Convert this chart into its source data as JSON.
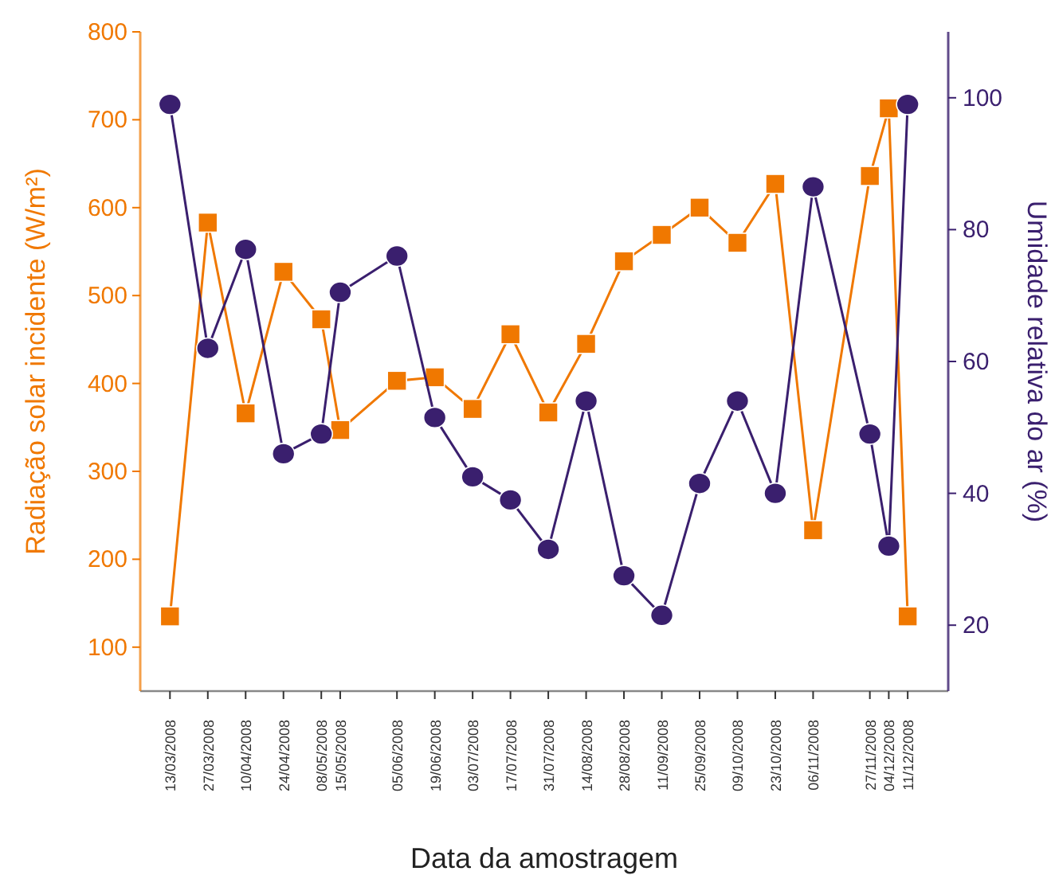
{
  "chart_data": {
    "type": "line",
    "xlabel": "Data da amostragem",
    "ylabel": "Radiação solar incidente (W/m²)",
    "y2label": "Umidade relativa do ar (%)",
    "x": [
      "2008-03-13",
      "2008-03-27",
      "2008-04-10",
      "2008-04-24",
      "2008-05-08",
      "2008-05-15",
      "2008-06-05",
      "2008-06-19",
      "2008-07-03",
      "2008-07-17",
      "2008-07-31",
      "2008-08-14",
      "2008-08-28",
      "2008-09-11",
      "2008-09-25",
      "2008-10-09",
      "2008-10-23",
      "2008-11-06",
      "2008-11-27",
      "2008-12-04",
      "2008-12-11"
    ],
    "series": [
      {
        "color": "#f07800",
        "marker": "square",
        "values": [
          135,
          583,
          366,
          527,
          473,
          347,
          403,
          407,
          371,
          456,
          367,
          445,
          539,
          569,
          600,
          560,
          627,
          233,
          636,
          713,
          135
        ]
      },
      {
        "color": "#3a1f6e",
        "marker": "circle",
        "axis": "y2",
        "values": [
          99,
          62,
          77,
          46,
          49,
          70.5,
          76,
          51.5,
          42.5,
          39,
          31.5,
          54,
          27.5,
          21.5,
          41.5,
          54,
          40,
          86.5,
          49,
          32,
          99
        ]
      }
    ],
    "xlim": [
      "2008-03-02",
      "2008-12-26"
    ],
    "xticks": [
      {
        "value": "2008-03-13",
        "label": "13/03/2008"
      },
      {
        "value": "2008-03-27",
        "label": "27/03/2008"
      },
      {
        "value": "2008-04-10",
        "label": "10/04/2008"
      },
      {
        "value": "2008-04-24",
        "label": "24/04/2008"
      },
      {
        "value": "2008-05-08",
        "label": "08/05/2008"
      },
      {
        "value": "2008-05-15",
        "label": "15/05/2008"
      },
      {
        "value": "2008-06-05",
        "label": "05/06/2008"
      },
      {
        "value": "2008-06-19",
        "label": "19/06/2008"
      },
      {
        "value": "2008-07-03",
        "label": "03/07/2008"
      },
      {
        "value": "2008-07-17",
        "label": "17/07/2008"
      },
      {
        "value": "2008-07-31",
        "label": "31/07/2008"
      },
      {
        "value": "2008-08-14",
        "label": "14/08/2008"
      },
      {
        "value": "2008-08-28",
        "label": "28/08/2008"
      },
      {
        "value": "2008-09-11",
        "label": "11/09/2008"
      },
      {
        "value": "2008-09-25",
        "label": "25/09/2008"
      },
      {
        "value": "2008-10-09",
        "label": "09/10/2008"
      },
      {
        "value": "2008-10-23",
        "label": "23/10/2008"
      },
      {
        "value": "2008-11-06",
        "label": "06/11/2008"
      },
      {
        "value": "2008-11-27",
        "label": "27/11/2008"
      },
      {
        "value": "2008-12-04",
        "label": "04/12/2008"
      },
      {
        "value": "2008-12-11",
        "label": "11/12/2008"
      }
    ],
    "ylim": [
      50,
      800
    ],
    "yticks": [
      100,
      200,
      300,
      400,
      500,
      600,
      700,
      800
    ],
    "y2lim": [
      10,
      110
    ],
    "y2ticks": [
      20,
      40,
      60,
      80,
      100
    ],
    "grid": false,
    "line_style": "solid"
  }
}
